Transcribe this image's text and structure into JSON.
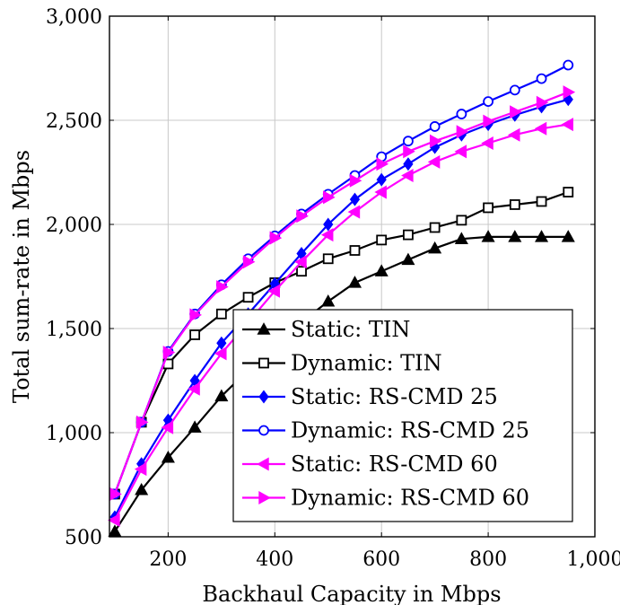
{
  "chart_data": {
    "type": "line",
    "title": "",
    "xlabel": "Backhaul Capacity in Mbps",
    "ylabel": "Total sum-rate in Mbps",
    "xlim": [
      90,
      1000
    ],
    "ylim": [
      500,
      3000
    ],
    "grid": true,
    "legend_position": "bottom-right",
    "x_ticks": [
      200,
      400,
      600,
      800,
      1000
    ],
    "x_tick_labels": [
      "200",
      "400",
      "600",
      "800",
      "1,000"
    ],
    "y_ticks": [
      500,
      1000,
      1500,
      2000,
      2500,
      3000
    ],
    "y_tick_labels": [
      "500",
      "1,000",
      "1,500",
      "2,000",
      "2,500",
      "3,000"
    ],
    "x": [
      100,
      150,
      200,
      250,
      300,
      350,
      400,
      450,
      500,
      550,
      600,
      650,
      700,
      750,
      800,
      850,
      900,
      950
    ],
    "series": [
      {
        "name": "Static: TIN",
        "color": "#000000",
        "marker": "triangle-up",
        "filled": true,
        "values": [
          525,
          725,
          880,
          1025,
          1175,
          1300,
          1420,
          1530,
          1630,
          1720,
          1775,
          1830,
          1885,
          1930,
          1940,
          1940,
          1940,
          1940
        ]
      },
      {
        "name": "Dynamic: TIN",
        "color": "#000000",
        "marker": "square",
        "filled": false,
        "values": [
          705,
          1050,
          1330,
          1470,
          1570,
          1650,
          1720,
          1775,
          1835,
          1875,
          1925,
          1950,
          1985,
          2020,
          2080,
          2095,
          2110,
          2155
        ]
      },
      {
        "name": "Static: RS-CMD 25",
        "color": "#0000ff",
        "marker": "diamond",
        "filled": true,
        "values": [
          595,
          850,
          1060,
          1250,
          1430,
          1570,
          1715,
          1860,
          2000,
          2120,
          2215,
          2290,
          2370,
          2430,
          2480,
          2525,
          2565,
          2600
        ]
      },
      {
        "name": "Dynamic: RS-CMD 25",
        "color": "#0000ff",
        "marker": "circle",
        "filled": false,
        "values": [
          705,
          1050,
          1390,
          1570,
          1710,
          1835,
          1945,
          2050,
          2145,
          2235,
          2325,
          2400,
          2470,
          2530,
          2590,
          2645,
          2700,
          2765
        ]
      },
      {
        "name": "Static: RS-CMD 60",
        "color": "#ff00ff",
        "marker": "triangle-left",
        "filled": true,
        "values": [
          580,
          825,
          1025,
          1210,
          1380,
          1530,
          1680,
          1820,
          1950,
          2060,
          2155,
          2235,
          2300,
          2350,
          2390,
          2430,
          2460,
          2480
        ]
      },
      {
        "name": "Dynamic: RS-CMD 60",
        "color": "#ff00ff",
        "marker": "triangle-right",
        "filled": true,
        "values": [
          705,
          1050,
          1385,
          1565,
          1700,
          1820,
          1935,
          2040,
          2130,
          2210,
          2290,
          2350,
          2400,
          2445,
          2495,
          2540,
          2585,
          2635
        ]
      }
    ]
  }
}
